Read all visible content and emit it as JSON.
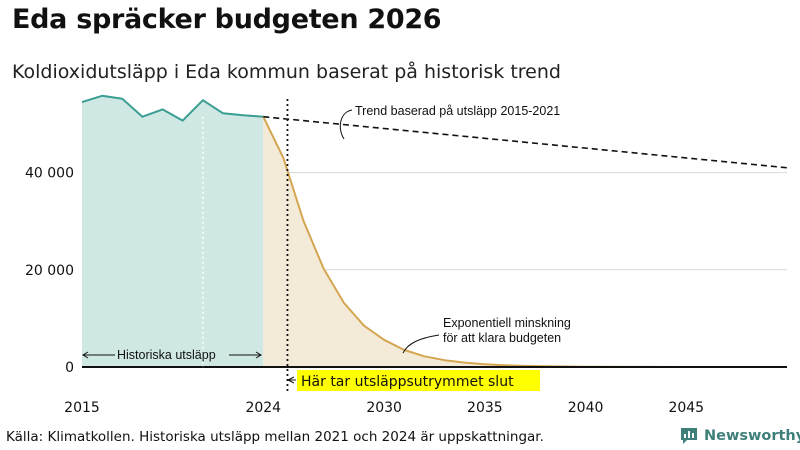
{
  "title": "Eda spräcker budgeten 2026",
  "subtitle": "Koldioxidutsläpp i Eda kommun baserat på historisk trend",
  "source": "Källa: Klimatkollen. Historiska utsläpp mellan 2021 och 2024 är uppskattningar.",
  "logo": {
    "name": "Newsworthy",
    "icon": "bar-chart-icon"
  },
  "colors": {
    "historical_fill": "#cfe8e4",
    "historical_line": "#3a9e93",
    "budget_fill": "#f4ead8",
    "budget_line": "#d4a651",
    "trend_line": "#111111",
    "highlight": "#ffff00",
    "grid": "#d9d9d9"
  },
  "chart_data": {
    "type": "area",
    "xlim": [
      2015,
      2050
    ],
    "ylim": [
      0,
      57000
    ],
    "y_ticks": [
      {
        "value": 0,
        "label": "0"
      },
      {
        "value": 20000,
        "label": "20 000"
      },
      {
        "value": 40000,
        "label": "40 000"
      }
    ],
    "x_ticks": [
      {
        "value": 2015,
        "label": "2015"
      },
      {
        "value": 2024,
        "label": "2024"
      },
      {
        "value": 2030,
        "label": "2030"
      },
      {
        "value": 2035,
        "label": "2035"
      },
      {
        "value": 2040,
        "label": "2040"
      },
      {
        "value": 2045,
        "label": "2045"
      }
    ],
    "series": [
      {
        "key": "historical",
        "x": [
          2015,
          2016,
          2017,
          2018,
          2019,
          2020,
          2021,
          2022,
          2023,
          2024
        ],
        "y": [
          54500,
          55800,
          55200,
          51500,
          53000,
          50700,
          54900,
          52200,
          51800,
          51500
        ]
      },
      {
        "key": "exponential",
        "x": [
          2024,
          2025,
          2026,
          2027,
          2028,
          2029,
          2030,
          2031,
          2032,
          2033,
          2034,
          2035,
          2036,
          2037,
          2038,
          2040,
          2045,
          2050
        ],
        "y": [
          51500,
          43000,
          30000,
          20200,
          13200,
          8500,
          5600,
          3500,
          2200,
          1400,
          900,
          550,
          350,
          220,
          140,
          60,
          5,
          0
        ]
      },
      {
        "key": "trend",
        "x": [
          2024,
          2050
        ],
        "y": [
          51500,
          41000
        ]
      }
    ],
    "markers": [
      {
        "type": "vline",
        "x": 2021,
        "style": "dotted-white"
      },
      {
        "type": "vline",
        "x": 2025.2,
        "style": "dotted-black"
      }
    ],
    "annotations": {
      "trend": "Trend baserad på utsläpp 2015-2021",
      "exponential_line1": "Exponentiell minskning",
      "exponential_line2": "för att klara budgeten",
      "historical": "Historiska utsläpp",
      "budget_end": "Här tar utsläppsutrymmet slut"
    }
  }
}
